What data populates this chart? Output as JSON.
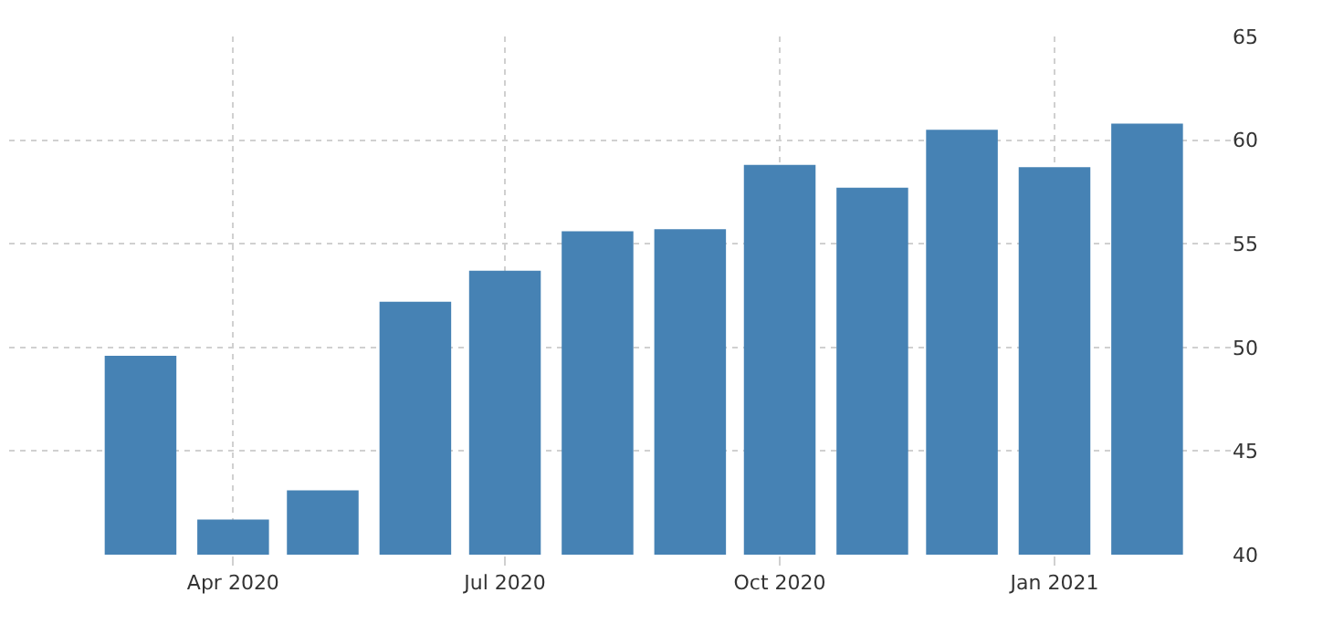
{
  "chart_data": {
    "type": "bar",
    "x": [
      "2020-03",
      "2020-04",
      "2020-05",
      "2020-06",
      "2020-07",
      "2020-08",
      "2020-09",
      "2020-10",
      "2020-11",
      "2020-12",
      "2021-01",
      "2021-02"
    ],
    "values": [
      49.6,
      41.7,
      43.1,
      52.2,
      53.7,
      55.6,
      55.7,
      58.8,
      57.7,
      60.5,
      58.7,
      60.8
    ],
    "color": "#4682b4",
    "xlim": [
      "2020-01-17",
      "2021-03-01"
    ],
    "xticks": [
      {
        "value": "2020-04",
        "label": "Apr 2020"
      },
      {
        "value": "2020-07",
        "label": "Jul 2020"
      },
      {
        "value": "2020-10",
        "label": "Oct 2020"
      },
      {
        "value": "2021-01",
        "label": "Jan 2021"
      }
    ],
    "ylim": [
      40,
      65
    ],
    "yticks": [
      40,
      45,
      50,
      55,
      60,
      65
    ],
    "grid": true,
    "legend": false
  }
}
